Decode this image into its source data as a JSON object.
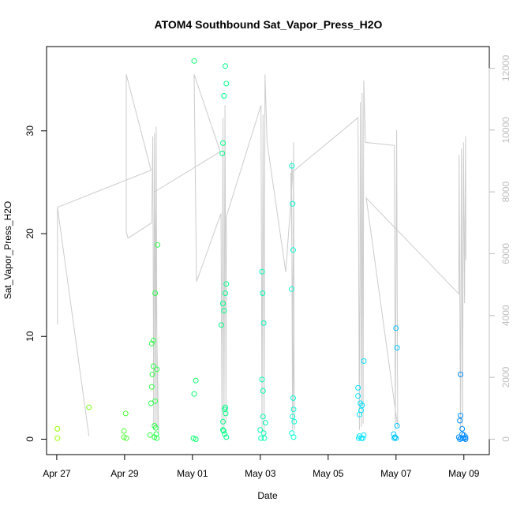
{
  "chart_data": {
    "type": "scatter",
    "title": "ATOM4 Southbound Sat_Vapor_Press_H2O",
    "xlabel": "Date",
    "ylabel": "Sat_Vapor_Press_H2O",
    "grid": false,
    "xlim": [
      -0.3,
      12.75
    ],
    "ylim": [
      -1.5,
      38.2
    ],
    "x_ticks": [
      {
        "value": 0,
        "label": "Apr 27"
      },
      {
        "value": 2,
        "label": "Apr 29"
      },
      {
        "value": 4,
        "label": "May 01"
      },
      {
        "value": 6,
        "label": "May 03"
      },
      {
        "value": 8,
        "label": "May 05"
      },
      {
        "value": 10,
        "label": "May 07"
      },
      {
        "value": 12,
        "label": "May 09"
      }
    ],
    "y_ticks": [
      0,
      10,
      20,
      30
    ],
    "secondary_axis": {
      "side": "right",
      "color": "#bdbdbd",
      "ylim": [
        -500,
        12700
      ],
      "ticks": [
        0,
        2000,
        4000,
        6000,
        8000,
        10000,
        12000
      ]
    },
    "series": [
      {
        "type": "scatter",
        "marker": "open-circle",
        "colormap": [
          "#99ff00",
          "#00ff66",
          "#00ffff",
          "#0088ff"
        ],
        "points": [
          {
            "x": 0.02,
            "y": 0.1
          },
          {
            "x": 0.02,
            "y": 1.0
          },
          {
            "x": 0.95,
            "y": 3.1
          },
          {
            "x": 1.98,
            "y": 0.2
          },
          {
            "x": 1.98,
            "y": 0.8
          },
          {
            "x": 2.03,
            "y": 2.5
          },
          {
            "x": 2.05,
            "y": 0.1
          },
          {
            "x": 2.75,
            "y": 0.4
          },
          {
            "x": 2.78,
            "y": 3.5
          },
          {
            "x": 2.8,
            "y": 5.1
          },
          {
            "x": 2.8,
            "y": 9.3
          },
          {
            "x": 2.82,
            "y": 6.3
          },
          {
            "x": 2.85,
            "y": 7.1
          },
          {
            "x": 2.85,
            "y": 9.6
          },
          {
            "x": 2.88,
            "y": 1.3
          },
          {
            "x": 2.88,
            "y": 0.2
          },
          {
            "x": 2.9,
            "y": 14.2
          },
          {
            "x": 2.9,
            "y": 3.7
          },
          {
            "x": 2.92,
            "y": 1.1
          },
          {
            "x": 2.93,
            "y": 0.5
          },
          {
            "x": 2.95,
            "y": 6.8
          },
          {
            "x": 2.95,
            "y": 0.1
          },
          {
            "x": 2.97,
            "y": 18.9
          },
          {
            "x": 4.03,
            "y": 0.1
          },
          {
            "x": 4.05,
            "y": 4.4
          },
          {
            "x": 4.05,
            "y": 36.8
          },
          {
            "x": 4.1,
            "y": 5.7
          },
          {
            "x": 4.1,
            "y": 0.0
          },
          {
            "x": 4.85,
            "y": 11.1
          },
          {
            "x": 4.88,
            "y": 27.8
          },
          {
            "x": 4.9,
            "y": 28.8
          },
          {
            "x": 4.9,
            "y": 13.2
          },
          {
            "x": 4.9,
            "y": 1.7
          },
          {
            "x": 4.9,
            "y": 0.9
          },
          {
            "x": 4.92,
            "y": 0.8
          },
          {
            "x": 4.93,
            "y": 33.4
          },
          {
            "x": 4.93,
            "y": 12.5
          },
          {
            "x": 4.95,
            "y": 2.9
          },
          {
            "x": 4.95,
            "y": 0.5
          },
          {
            "x": 4.97,
            "y": 36.3
          },
          {
            "x": 4.97,
            "y": 14.2
          },
          {
            "x": 4.97,
            "y": 3.1
          },
          {
            "x": 4.98,
            "y": 2.5
          },
          {
            "x": 5.0,
            "y": 34.6
          },
          {
            "x": 5.0,
            "y": 15.1
          },
          {
            "x": 5.0,
            "y": 0.2
          },
          {
            "x": 6.0,
            "y": 0.9
          },
          {
            "x": 6.02,
            "y": 0.1
          },
          {
            "x": 6.05,
            "y": 16.3
          },
          {
            "x": 6.05,
            "y": 5.8
          },
          {
            "x": 6.07,
            "y": 14.2
          },
          {
            "x": 6.08,
            "y": 4.7
          },
          {
            "x": 6.08,
            "y": 2.2
          },
          {
            "x": 6.1,
            "y": 11.3
          },
          {
            "x": 6.1,
            "y": 0.6
          },
          {
            "x": 6.12,
            "y": 0.1
          },
          {
            "x": 6.15,
            "y": 1.6
          },
          {
            "x": 6.92,
            "y": 14.6
          },
          {
            "x": 6.93,
            "y": 26.6
          },
          {
            "x": 6.93,
            "y": 0.6
          },
          {
            "x": 6.95,
            "y": 22.9
          },
          {
            "x": 6.95,
            "y": 2.2
          },
          {
            "x": 6.97,
            "y": 18.4
          },
          {
            "x": 6.97,
            "y": 4.0
          },
          {
            "x": 6.98,
            "y": 2.9
          },
          {
            "x": 6.98,
            "y": 0.2
          },
          {
            "x": 7.0,
            "y": 1.7
          },
          {
            "x": 10.0,
            "y": 10.8
          },
          {
            "x": 10.03,
            "y": 8.9
          },
          {
            "x": 10.03,
            "y": 1.3
          },
          {
            "x": 10.0,
            "y": 0.1
          },
          {
            "x": 9.93,
            "y": 0.5
          },
          {
            "x": 9.95,
            "y": 0.1
          },
          {
            "x": 9.97,
            "y": 0.2
          },
          {
            "x": 11.85,
            "y": 0.2
          },
          {
            "x": 11.88,
            "y": 1.8
          },
          {
            "x": 11.88,
            "y": 0.0
          },
          {
            "x": 11.9,
            "y": 2.3
          },
          {
            "x": 11.9,
            "y": 6.3
          },
          {
            "x": 11.92,
            "y": 0.1
          },
          {
            "x": 11.95,
            "y": 1.0
          },
          {
            "x": 11.95,
            "y": 0.5
          },
          {
            "x": 11.97,
            "y": 0.1
          },
          {
            "x": 12.0,
            "y": 0.4
          },
          {
            "x": 12.02,
            "y": 0.1
          },
          {
            "x": 12.05,
            "y": 0.2
          },
          {
            "x": 12.05,
            "y": 0.0
          },
          {
            "x": 8.88,
            "y": 5.0
          },
          {
            "x": 8.88,
            "y": 4.2
          },
          {
            "x": 8.9,
            "y": 0.1
          },
          {
            "x": 8.92,
            "y": 2.4
          },
          {
            "x": 8.92,
            "y": 0.3
          },
          {
            "x": 8.95,
            "y": 3.5
          },
          {
            "x": 8.97,
            "y": 2.8
          },
          {
            "x": 8.98,
            "y": 0.1
          },
          {
            "x": 9.0,
            "y": 3.3
          },
          {
            "x": 9.02,
            "y": 0.1
          },
          {
            "x": 9.05,
            "y": 7.6
          },
          {
            "x": 9.05,
            "y": 0.4
          }
        ]
      },
      {
        "type": "line",
        "axis": "right",
        "color": "#cccccc",
        "points": [
          {
            "x": 0.02,
            "y": 3700
          },
          {
            "x": 0.02,
            "y": 7500
          },
          {
            "x": 0.95,
            "y": 100
          },
          {
            "x": 0.02,
            "y": 7500
          },
          {
            "x": 2.78,
            "y": 8700
          },
          {
            "x": 2.05,
            "y": 11800
          },
          {
            "x": 2.05,
            "y": 6700
          },
          {
            "x": 2.1,
            "y": 6500
          },
          {
            "x": 2.8,
            "y": 7000
          },
          {
            "x": 2.83,
            "y": 9800
          },
          {
            "x": 2.86,
            "y": 300
          },
          {
            "x": 2.88,
            "y": 9900
          },
          {
            "x": 2.91,
            "y": 400
          },
          {
            "x": 2.93,
            "y": 10100
          },
          {
            "x": 2.96,
            "y": 500
          },
          {
            "x": 3.0,
            "y": 200
          },
          {
            "x": 2.88,
            "y": 8000
          },
          {
            "x": 4.82,
            "y": 9300
          },
          {
            "x": 4.05,
            "y": 11800
          },
          {
            "x": 4.12,
            "y": 5100
          },
          {
            "x": 4.84,
            "y": 7300
          },
          {
            "x": 4.87,
            "y": 300
          },
          {
            "x": 4.9,
            "y": 10400
          },
          {
            "x": 4.93,
            "y": 200
          },
          {
            "x": 4.96,
            "y": 10800
          },
          {
            "x": 4.99,
            "y": 500
          },
          {
            "x": 5.0,
            "y": 7200
          },
          {
            "x": 6.02,
            "y": 10800
          },
          {
            "x": 6.05,
            "y": 200
          },
          {
            "x": 6.08,
            "y": 10500
          },
          {
            "x": 6.11,
            "y": 100
          },
          {
            "x": 6.14,
            "y": 11800
          },
          {
            "x": 6.2,
            "y": 9600
          },
          {
            "x": 6.75,
            "y": 5400
          },
          {
            "x": 6.95,
            "y": 8500
          },
          {
            "x": 6.92,
            "y": 9000
          },
          {
            "x": 6.95,
            "y": 300
          },
          {
            "x": 6.98,
            "y": 9600
          },
          {
            "x": 7.0,
            "y": 300
          },
          {
            "x": 6.9,
            "y": 8600
          },
          {
            "x": 8.88,
            "y": 10400
          },
          {
            "x": 8.92,
            "y": 300
          },
          {
            "x": 8.95,
            "y": 10900
          },
          {
            "x": 8.98,
            "y": 400
          },
          {
            "x": 9.0,
            "y": 11200
          },
          {
            "x": 9.03,
            "y": 500
          },
          {
            "x": 9.05,
            "y": 11600
          },
          {
            "x": 9.1,
            "y": 9600
          },
          {
            "x": 9.95,
            "y": 9500
          },
          {
            "x": 9.98,
            "y": 300
          },
          {
            "x": 10.02,
            "y": 10000
          },
          {
            "x": 10.05,
            "y": 400
          },
          {
            "x": 9.12,
            "y": 7800
          },
          {
            "x": 11.85,
            "y": 4700
          },
          {
            "x": 11.86,
            "y": 9200
          },
          {
            "x": 11.9,
            "y": 300
          },
          {
            "x": 11.93,
            "y": 9400
          },
          {
            "x": 11.96,
            "y": 400
          },
          {
            "x": 11.99,
            "y": 9600
          },
          {
            "x": 12.02,
            "y": 4400
          },
          {
            "x": 12.05,
            "y": 9800
          },
          {
            "x": 12.06,
            "y": 5800
          }
        ]
      }
    ]
  }
}
